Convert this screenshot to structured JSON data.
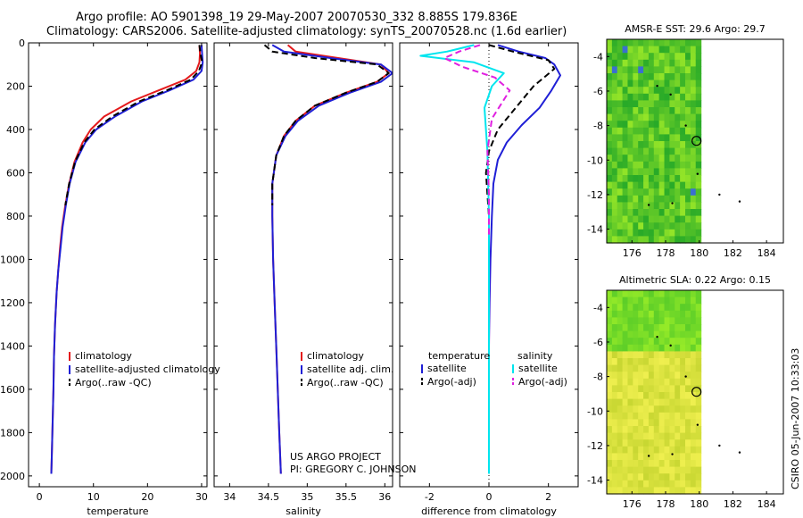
{
  "header": {
    "line1": "Argo profile: AO 5901398_19 29-May-2007 20070530_332 8.885S 179.836E",
    "line2": "Climatology: CARS2006. Satellite-adjusted climatology: synTS_20070528.nc (1.6d earlier)"
  },
  "credits": {
    "project": "US ARGO PROJECT",
    "pi": "PI: GREGORY C. JOHNSON"
  },
  "stamp": "CSIRO 05-Jun-2007 10:33:03",
  "colors": {
    "climatology": "#e41a1c",
    "satellite": "#1f1fd6",
    "argo": "#000000",
    "satellite_salt": "#00e5ee",
    "argo_salt_adj": "#e020e0"
  },
  "chart_data": [
    {
      "type": "line",
      "id": "temperature_profile",
      "xlabel": "temperature",
      "ylabel": "",
      "xlim": [
        -2,
        31
      ],
      "ylim": [
        2050,
        0
      ],
      "xticks": [
        0,
        10,
        20,
        30
      ],
      "yticks": [
        0,
        200,
        400,
        600,
        800,
        1000,
        1200,
        1400,
        1600,
        1800,
        2000
      ],
      "legend": [
        "climatology",
        "satellite-adjusted climatology",
        "Argo(..raw -QC)"
      ],
      "series": [
        {
          "name": "climatology",
          "color": "#e41a1c",
          "x": [
            29.6,
            29.7,
            29.6,
            29.0,
            27.0,
            22.0,
            17.0,
            12.0,
            9.5,
            8.0,
            6.5,
            5.5,
            4.8,
            4.2,
            3.8,
            3.5,
            3.2,
            2.9,
            2.7,
            2.6,
            2.5,
            2.4,
            2.3,
            2.2
          ],
          "y": [
            10,
            50,
            90,
            130,
            170,
            220,
            270,
            340,
            400,
            460,
            550,
            650,
            750,
            850,
            950,
            1050,
            1150,
            1300,
            1450,
            1600,
            1700,
            1800,
            1900,
            1990
          ]
        },
        {
          "name": "satellite-adjusted climatology",
          "color": "#1f1fd6",
          "x": [
            30.0,
            30.1,
            30.2,
            30.0,
            28.5,
            24.0,
            19.0,
            14.0,
            10.5,
            8.5,
            6.7,
            5.6,
            4.9,
            4.3,
            3.9,
            3.5,
            3.2,
            2.9,
            2.7,
            2.6,
            2.5,
            2.4,
            2.3,
            2.2
          ],
          "y": [
            10,
            50,
            90,
            130,
            170,
            220,
            270,
            340,
            400,
            460,
            550,
            650,
            750,
            850,
            950,
            1050,
            1150,
            1300,
            1450,
            1600,
            1700,
            1800,
            1900,
            1990
          ]
        },
        {
          "name": "Argo(..raw -QC)",
          "color": "#000000",
          "dash": true,
          "x": [
            29.6,
            29.8,
            30.1,
            29.5,
            28.0,
            23.5,
            18.5,
            13.5,
            10.2,
            8.3,
            6.6,
            5.5,
            4.8
          ],
          "y": [
            10,
            50,
            90,
            130,
            170,
            220,
            270,
            340,
            400,
            460,
            550,
            650,
            750
          ]
        }
      ]
    },
    {
      "type": "line",
      "id": "salinity_profile",
      "xlabel": "salinity",
      "ylabel": "",
      "xlim": [
        33.8,
        36.1
      ],
      "ylim": [
        2050,
        0
      ],
      "xticks": [
        34,
        34.5,
        35,
        35.5,
        36
      ],
      "xtick_labels": [
        "34",
        "34.5",
        "35",
        "35.5",
        "36"
      ],
      "yticks": [
        0,
        200,
        400,
        600,
        800,
        1000,
        1200,
        1400,
        1600,
        1800,
        2000
      ],
      "legend": [
        "climatology",
        "satellite adj. clim.",
        "Argo(..raw -QC)"
      ],
      "series": [
        {
          "name": "climatology",
          "color": "#e41a1c",
          "x": [
            34.75,
            34.85,
            35.4,
            35.95,
            36.05,
            35.9,
            35.5,
            35.1,
            34.85,
            34.7,
            34.6,
            34.55,
            34.55,
            34.56,
            34.58,
            34.6,
            34.62,
            34.64,
            34.66
          ],
          "y": [
            10,
            40,
            70,
            100,
            140,
            180,
            230,
            290,
            360,
            430,
            520,
            650,
            800,
            1000,
            1200,
            1400,
            1600,
            1800,
            1990
          ]
        },
        {
          "name": "satellite adj. clim.",
          "color": "#1f1fd6",
          "x": [
            34.55,
            34.7,
            35.3,
            35.95,
            36.1,
            35.95,
            35.55,
            35.15,
            34.88,
            34.72,
            34.6,
            34.55,
            34.55,
            34.56,
            34.58,
            34.6,
            34.62,
            34.64,
            34.66
          ],
          "y": [
            10,
            40,
            70,
            100,
            140,
            180,
            230,
            290,
            360,
            430,
            520,
            650,
            800,
            1000,
            1200,
            1400,
            1600,
            1800,
            1990
          ]
        },
        {
          "name": "Argo(..raw -QC)",
          "color": "#000000",
          "dash": true,
          "x": [
            34.45,
            34.55,
            35.1,
            35.9,
            36.05,
            35.9,
            35.5,
            35.1,
            34.85,
            34.7,
            34.6,
            34.55,
            34.55
          ],
          "y": [
            10,
            40,
            70,
            100,
            140,
            180,
            230,
            290,
            360,
            430,
            520,
            650,
            750
          ]
        }
      ]
    },
    {
      "type": "line",
      "id": "difference_profile",
      "xlabel": "difference from climatology",
      "ylabel": "",
      "xlim": [
        -3.0,
        3.0
      ],
      "ylim": [
        2050,
        0
      ],
      "xticks": [
        -2,
        0,
        2
      ],
      "yticks": [
        0,
        200,
        400,
        600,
        800,
        1000,
        1200,
        1400,
        1600,
        1800,
        2000
      ],
      "legend_titles": [
        "temperature",
        "salinity"
      ],
      "legend": [
        "satellite",
        "Argo(-adj)",
        "satellite",
        "Argo(-adj)"
      ],
      "series": [
        {
          "name": "satellite",
          "group": "temperature",
          "color": "#1f1fd6",
          "x": [
            0.3,
            1.0,
            1.9,
            2.2,
            2.4,
            2.1,
            1.7,
            1.1,
            0.6,
            0.3,
            0.15,
            0.1,
            0.05,
            0.02,
            0.0,
            0.0,
            0.0
          ],
          "y": [
            10,
            40,
            70,
            100,
            150,
            220,
            300,
            380,
            460,
            540,
            650,
            800,
            1000,
            1200,
            1400,
            1700,
            1990
          ]
        },
        {
          "name": "Argo(-adj)",
          "group": "temperature",
          "color": "#000000",
          "dash": true,
          "x": [
            0.0,
            0.8,
            2.0,
            2.2,
            1.5,
            0.9,
            0.3,
            0.0,
            -0.1,
            -0.05,
            0.0
          ],
          "y": [
            10,
            40,
            80,
            120,
            200,
            300,
            400,
            500,
            600,
            700,
            800
          ]
        },
        {
          "name": "satellite",
          "group": "salinity",
          "color": "#00e5ee",
          "x": [
            -0.5,
            -1.4,
            -2.3,
            -0.5,
            0.5,
            0.1,
            -0.15,
            -0.05,
            0.0,
            0.0,
            0.0
          ],
          "y": [
            10,
            40,
            60,
            90,
            140,
            200,
            300,
            500,
            800,
            1200,
            1990
          ]
        },
        {
          "name": "Argo(-adj)",
          "group": "salinity",
          "color": "#e020e0",
          "dash": true,
          "x": [
            -0.3,
            -1.0,
            -1.5,
            -0.9,
            0.2,
            0.7,
            0.1,
            -0.05,
            0.0,
            0.0
          ],
          "y": [
            10,
            40,
            70,
            110,
            160,
            220,
            350,
            500,
            700,
            900
          ]
        }
      ]
    },
    {
      "type": "heatmap",
      "id": "sst_map",
      "title": "AMSR-E SST: 29.6  Argo: 29.7",
      "xlim": [
        174.5,
        185
      ],
      "ylim": [
        -14.8,
        -3.0
      ],
      "xticks": [
        176,
        178,
        180,
        182,
        184
      ],
      "yticks": [
        -4,
        -6,
        -8,
        -10,
        -12,
        -14
      ],
      "marker": {
        "lon": 179.836,
        "lat": -8.885
      }
    },
    {
      "type": "heatmap",
      "id": "sla_map",
      "title": "Altimetric SLA: 0.22  Argo: 0.15",
      "xlim": [
        174.5,
        185
      ],
      "ylim": [
        -14.8,
        -3.0
      ],
      "xticks": [
        176,
        178,
        180,
        182,
        184
      ],
      "yticks": [
        -4,
        -6,
        -8,
        -10,
        -12,
        -14
      ],
      "marker": {
        "lon": 179.836,
        "lat": -8.885
      }
    }
  ]
}
